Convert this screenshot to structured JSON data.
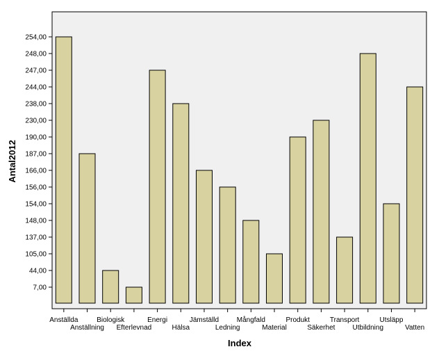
{
  "chart_data": {
    "type": "bar",
    "title": "",
    "xlabel": "Index",
    "ylabel": "Antal2012",
    "categories": [
      "Anställda",
      "Anställning",
      "Biologisk",
      "Efterlevnad",
      "Energi",
      "Hälsa",
      "Jämställd",
      "Ledning",
      "Mångfald",
      "Material",
      "Produkt",
      "Säkerhet",
      "Transport",
      "Utbildning",
      "Utsläpp",
      "Vatten"
    ],
    "y_ticks": [
      "7,00",
      "44,00",
      "105,00",
      "137,00",
      "148,00",
      "154,00",
      "156,00",
      "166,00",
      "187,00",
      "190,00",
      "230,00",
      "238,00",
      "244,00",
      "247,00",
      "248,00",
      "254,00"
    ],
    "values": [
      "254,00",
      "187,00",
      "44,00",
      "7,00",
      "247,00",
      "238,00",
      "166,00",
      "156,00",
      "148,00",
      "105,00",
      "190,00",
      "230,00",
      "137,00",
      "248,00",
      "154,00",
      "244,00"
    ],
    "y_axis_note": "categorical ordinal axis",
    "colors": {
      "bar_fill": "#d8d2a0",
      "bar_stroke": "#000000",
      "plot_bg": "#f0f0f0"
    },
    "grid": false
  }
}
